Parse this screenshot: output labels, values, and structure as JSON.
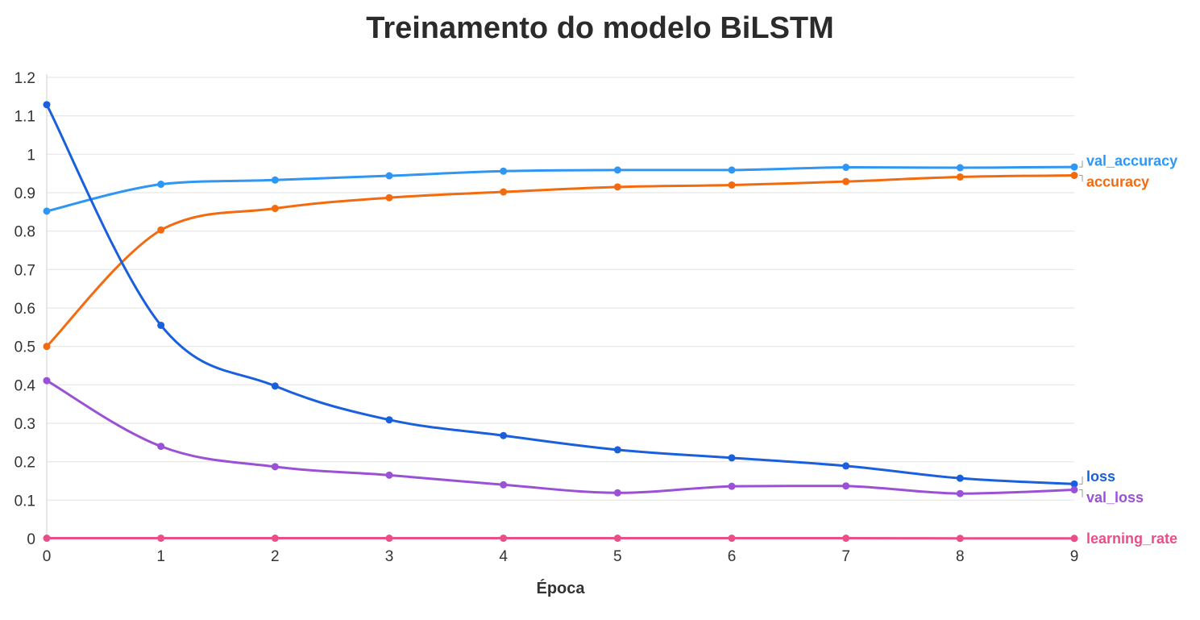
{
  "chart_data": {
    "type": "line",
    "title": "Treinamento do modelo BiLSTM",
    "xlabel": "Época",
    "ylabel": "",
    "x": [
      0,
      1,
      2,
      3,
      4,
      5,
      6,
      7,
      8,
      9
    ],
    "xlim": [
      0,
      9
    ],
    "ylim": [
      0,
      1.2
    ],
    "x_ticks": [
      "0",
      "1",
      "2",
      "3",
      "4",
      "5",
      "6",
      "7",
      "8",
      "9"
    ],
    "y_ticks": [
      "0",
      "0.1",
      "0.2",
      "0.3",
      "0.4",
      "0.5",
      "0.6",
      "0.7",
      "0.8",
      "0.9",
      "1",
      "1.1",
      "1.2"
    ],
    "grid": "horizontal",
    "legend": "end-of-line labels (right)",
    "series": [
      {
        "name": "val_accuracy",
        "color": "#2f96f3",
        "values": [
          0.852,
          0.922,
          0.933,
          0.944,
          0.956,
          0.959,
          0.959,
          0.966,
          0.965,
          0.967
        ]
      },
      {
        "name": "accuracy",
        "color": "#f26b0f",
        "values": [
          0.5,
          0.803,
          0.859,
          0.887,
          0.902,
          0.915,
          0.92,
          0.929,
          0.941,
          0.945
        ]
      },
      {
        "name": "loss",
        "color": "#1a5fdc",
        "values": [
          1.129,
          0.555,
          0.397,
          0.309,
          0.268,
          0.231,
          0.21,
          0.189,
          0.157,
          0.142
        ]
      },
      {
        "name": "val_loss",
        "color": "#9b51d6",
        "values": [
          0.411,
          0.24,
          0.187,
          0.165,
          0.14,
          0.119,
          0.136,
          0.137,
          0.117,
          0.127
        ]
      },
      {
        "name": "learning_rate",
        "color": "#e94e8a",
        "values": [
          0.001,
          0.001,
          0.001,
          0.001,
          0.001,
          0.001,
          0.001,
          0.001,
          0.0005,
          0.0005
        ]
      }
    ]
  }
}
